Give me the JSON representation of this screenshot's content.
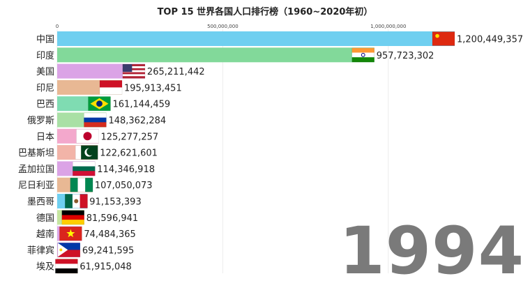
{
  "chart_data": {
    "type": "bar",
    "title": "TOP 15 世界各国人口排行榜（1960~2020年初）",
    "year": "1994",
    "xticks": [
      "0",
      "500,000,000",
      "1,000,000,000"
    ],
    "xtick_values": [
      0,
      500000000,
      1000000000
    ],
    "xlim": [
      0,
      1200449357
    ],
    "grid": true,
    "categories": [
      "中国",
      "印度",
      "美国",
      "印尼",
      "巴西",
      "俄罗斯",
      "日本",
      "巴基斯坦",
      "孟加拉国",
      "尼日利亚",
      "墨西哥",
      "德国",
      "越南",
      "菲律宾",
      "埃及"
    ],
    "values": [
      1200449357,
      957723302,
      265211442,
      195913451,
      161144459,
      148362284,
      125277257,
      122621601,
      114346918,
      107050073,
      91153393,
      81596941,
      74484365,
      69241595,
      61915048
    ],
    "value_labels": [
      "1,200,449,357",
      "957,723,302",
      "265,211,442",
      "195,913,451",
      "161,144,459",
      "148,362,284",
      "125,277,257",
      "122,621,601",
      "114,346,918",
      "107,050,073",
      "91,153,393",
      "81,596,941",
      "74,484,365",
      "69,241,595",
      "61,915,048"
    ],
    "colors": [
      "#6fcff0",
      "#82d99a",
      "#dba3e6",
      "#e8b894",
      "#7fdcb2",
      "#a9e0a5",
      "#f3a8cc",
      "#f2b4a8",
      "#dba3e6",
      "#e8b894",
      "#6fcff0",
      "#c6e6a0",
      "#dba3e6",
      "#dba3e6",
      "#e8b894"
    ],
    "flags": [
      "china-flag",
      "india-flag",
      "usa-flag",
      "indonesia-flag",
      "brazil-flag",
      "russia-flag",
      "japan-flag",
      "pakistan-flag",
      "bangladesh-flag",
      "nigeria-flag",
      "mexico-flag",
      "germany-flag",
      "vietnam-flag",
      "philippines-flag",
      "egypt-flag"
    ]
  }
}
